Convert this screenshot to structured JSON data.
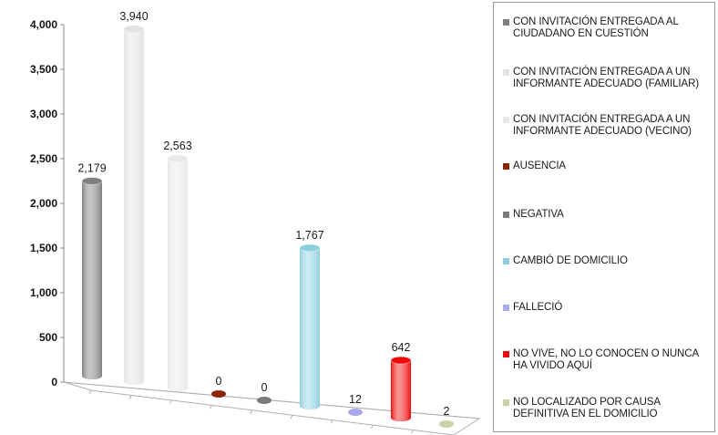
{
  "chart_data": {
    "type": "bar",
    "style": "3d-cylinder",
    "categories": [
      "CON INVITACIÓN ENTREGADA AL CIUDADANO EN CUESTIÓN",
      "CON INVITACIÓN ENTREGADA A UN INFORMANTE ADECUADO (FAMILIAR)",
      "CON INVITACIÓN ENTREGADA A UN INFORMANTE ADECUADO (VECINO)",
      "AUSENCIA",
      "NEGATIVA",
      "CAMBIÓ DE DOMICILIO",
      "FALLECIÓ",
      "NO VIVE, NO LO CONOCEN O NUNCA HA VIVIDO AQUÍ",
      "NO LOCALIZADO POR CAUSA DEFINITIVA EN EL DOMICILIO"
    ],
    "values": [
      2179,
      3940,
      2563,
      0,
      0,
      1767,
      12,
      642,
      2
    ],
    "data_labels": [
      "2,179",
      "3,940",
      "2,563",
      "0",
      "0",
      "1,767",
      "12",
      "642",
      "2"
    ],
    "colors": [
      "#808080",
      "#e3e3e3",
      "#e8e8e8",
      "#8b2500",
      "#7a7a7a",
      "#8ecfdf",
      "#a9a9ee",
      "#ee0a0a",
      "#c8d2a6"
    ],
    "ylim": [
      0,
      4000
    ],
    "yticks": [
      0,
      500,
      1000,
      1500,
      2000,
      2500,
      3000,
      3500,
      4000
    ],
    "ytick_labels": [
      "0",
      "500",
      "1,000",
      "1,500",
      "2,000",
      "2,500",
      "3,000",
      "3,500",
      "4,000"
    ],
    "legend_position": "right",
    "grid": false
  }
}
